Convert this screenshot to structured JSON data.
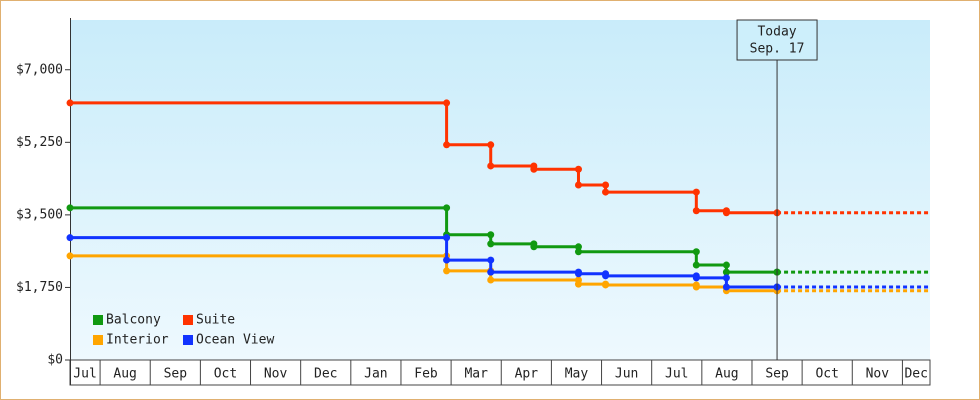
{
  "chart_data": {
    "type": "step",
    "xlim": [
      -0.6,
      16.55
    ],
    "xticks": [
      {
        "value": -0.5,
        "label": "Jul"
      },
      {
        "value": 0.5,
        "label": "Aug"
      },
      {
        "value": 1.5,
        "label": "Sep"
      },
      {
        "value": 2.5,
        "label": "Oct"
      },
      {
        "value": 3.5,
        "label": "Nov"
      },
      {
        "value": 4.5,
        "label": "Dec"
      },
      {
        "value": 5.5,
        "label": "Jan"
      },
      {
        "value": 6.5,
        "label": "Feb"
      },
      {
        "value": 7.5,
        "label": "Mar"
      },
      {
        "value": 8.5,
        "label": "Apr"
      },
      {
        "value": 9.5,
        "label": "May"
      },
      {
        "value": 10.5,
        "label": "Jun"
      },
      {
        "value": 11.5,
        "label": "Jul"
      },
      {
        "value": 12.5,
        "label": "Aug"
      },
      {
        "value": 13.5,
        "label": "Sep"
      },
      {
        "value": 14.5,
        "label": "Oct"
      },
      {
        "value": 15.5,
        "label": "Nov"
      },
      {
        "value": 16.5,
        "label": "Dec"
      }
    ],
    "ylim": [
      0,
      8200
    ],
    "yticks": [
      {
        "value": 0,
        "label": "$0"
      },
      {
        "value": 1750,
        "label": "$1,750"
      },
      {
        "value": 3500,
        "label": "$3,500"
      },
      {
        "value": 5250,
        "label": "$5,250"
      },
      {
        "value": 7000,
        "label": "$7,000"
      }
    ],
    "series": [
      {
        "name": "Balcony",
        "color": "#119911",
        "x": [
          -0.6,
          6.91,
          7.79,
          8.65,
          9.54,
          11.89,
          12.49,
          13.5
        ],
        "values": [
          3670,
          3020,
          2800,
          2730,
          2610,
          2290,
          2120,
          2120
        ]
      },
      {
        "name": "Suite",
        "color": "#ff3300",
        "x": [
          -0.6,
          6.91,
          7.79,
          8.65,
          9.54,
          10.08,
          11.89,
          12.49,
          13.5
        ],
        "values": [
          6200,
          5190,
          4680,
          4600,
          4220,
          4050,
          3600,
          3550,
          3550
        ]
      },
      {
        "name": "Interior",
        "color": "#ffa500",
        "x": [
          -0.6,
          6.91,
          7.79,
          9.54,
          10.08,
          11.89,
          12.49,
          13.5
        ],
        "values": [
          2510,
          2150,
          1930,
          1830,
          1810,
          1760,
          1670,
          1670
        ]
      },
      {
        "name": "Ocean View",
        "color": "#1133ff",
        "x": [
          -0.6,
          6.91,
          7.79,
          9.54,
          10.08,
          11.89,
          12.49,
          13.5
        ],
        "values": [
          2950,
          2410,
          2120,
          2080,
          2030,
          1980,
          1760,
          1760
        ]
      }
    ],
    "annotation": {
      "x": 13.5,
      "lines": [
        "Today",
        "Sep. 17"
      ]
    }
  }
}
